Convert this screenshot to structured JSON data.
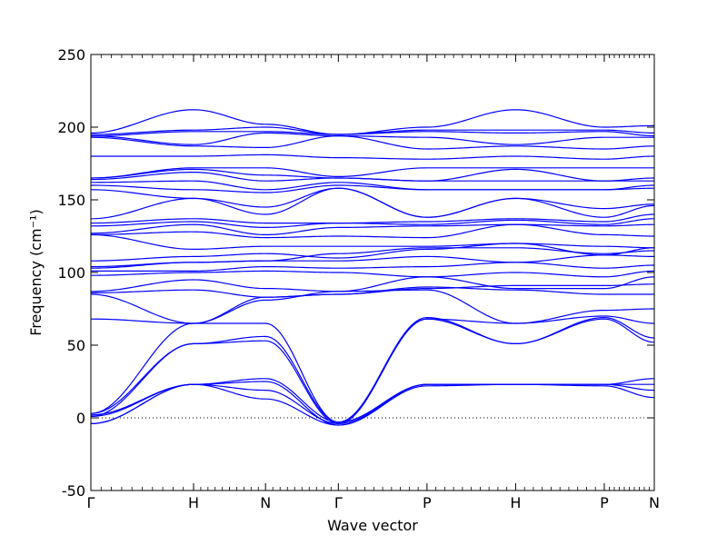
{
  "chart_data": {
    "type": "line",
    "title": "",
    "xlabel": "Wave vector",
    "ylabel": "Frequency (cm⁻¹)",
    "ylim": [
      -50,
      250
    ],
    "yticks": [
      -50,
      0,
      50,
      100,
      150,
      200,
      250
    ],
    "x_range": [
      0,
      6.42
    ],
    "high_symmetry_points": [
      {
        "label": "Γ",
        "x": 0
      },
      {
        "label": "H",
        "x": 1.17
      },
      {
        "label": "N",
        "x": 1.99
      },
      {
        "label": "Γ",
        "x": 2.82
      },
      {
        "label": "P",
        "x": 3.83
      },
      {
        "label": "H",
        "x": 4.84
      },
      {
        "label": "P",
        "x": 5.85
      },
      {
        "label": "N",
        "x": 6.42
      }
    ],
    "zero_line": 0,
    "line_color": "#0000ff",
    "series": [
      {
        "values": [
          2,
          23,
          13,
          -5,
          22,
          23,
          22,
          14
        ]
      },
      {
        "values": [
          -4,
          23,
          19,
          -4,
          23,
          23,
          23,
          19
        ]
      },
      {
        "values": [
          -4,
          23,
          25,
          -5,
          23,
          23,
          23,
          23
        ]
      },
      {
        "values": [
          1,
          23,
          27,
          -3,
          23,
          23,
          23,
          27
        ]
      },
      {
        "values": [
          1,
          51,
          53,
          -4,
          68,
          51,
          68,
          52
        ]
      },
      {
        "values": [
          3,
          51,
          56,
          -3,
          69,
          51,
          69,
          55
        ]
      },
      {
        "values": [
          3,
          65,
          65,
          -3,
          68,
          65,
          70,
          65
        ]
      },
      {
        "values": [
          68,
          65,
          81,
          87,
          88,
          65,
          74,
          75
        ]
      },
      {
        "values": [
          85,
          65,
          83,
          85,
          90,
          88,
          85,
          85
        ]
      },
      {
        "values": [
          86,
          88,
          83,
          85,
          89,
          91,
          91,
          92
        ]
      },
      {
        "values": [
          87,
          95,
          89,
          87,
          97,
          89,
          89,
          97
        ]
      },
      {
        "values": [
          98,
          100,
          101,
          100,
          97,
          100,
          97,
          101
        ]
      },
      {
        "values": [
          101,
          101,
          104,
          103,
          104,
          107,
          103,
          105
        ]
      },
      {
        "values": [
          103,
          107,
          108,
          108,
          111,
          107,
          112,
          111
        ]
      },
      {
        "values": [
          104,
          107,
          108,
          113,
          117,
          117,
          113,
          115
        ]
      },
      {
        "values": [
          108,
          111,
          113,
          110,
          116,
          120,
          112,
          117
        ]
      },
      {
        "values": [
          126,
          116,
          118,
          118,
          118,
          120,
          118,
          117
        ]
      },
      {
        "values": [
          126,
          128,
          124,
          125,
          124,
          133,
          126,
          125
        ]
      },
      {
        "values": [
          127,
          133,
          126,
          131,
          132,
          133,
          132,
          133
        ]
      },
      {
        "values": [
          132,
          135,
          131,
          134,
          133,
          136,
          133,
          137
        ]
      },
      {
        "values": [
          134,
          137,
          134,
          134,
          135,
          137,
          135,
          140
        ]
      },
      {
        "values": [
          137,
          151,
          140,
          158,
          138,
          151,
          138,
          146
        ]
      },
      {
        "values": [
          157,
          151,
          145,
          158,
          138,
          151,
          144,
          147
        ]
      },
      {
        "values": [
          160,
          157,
          155,
          160,
          157,
          157,
          157,
          158
        ]
      },
      {
        "values": [
          162,
          163,
          157,
          162,
          157,
          157,
          157,
          160
        ]
      },
      {
        "values": [
          164,
          169,
          163,
          165,
          163,
          163,
          163,
          163
        ]
      },
      {
        "values": [
          165,
          171,
          167,
          165,
          163,
          171,
          163,
          165
        ]
      },
      {
        "values": [
          165,
          172,
          172,
          166,
          172,
          172,
          172,
          172
        ]
      },
      {
        "values": [
          180,
          180,
          181,
          179,
          178,
          180,
          178,
          180
        ]
      },
      {
        "values": [
          193,
          187,
          186,
          194,
          185,
          187,
          185,
          187
        ]
      },
      {
        "values": [
          194,
          188,
          196,
          194,
          193,
          188,
          193,
          193
        ]
      },
      {
        "values": [
          194,
          197,
          197,
          195,
          197,
          196,
          197,
          194
        ]
      },
      {
        "values": [
          195,
          198,
          200,
          195,
          198,
          198,
          198,
          196
        ]
      },
      {
        "values": [
          196,
          212,
          202,
          195,
          200,
          212,
          200,
          201
        ]
      }
    ]
  }
}
